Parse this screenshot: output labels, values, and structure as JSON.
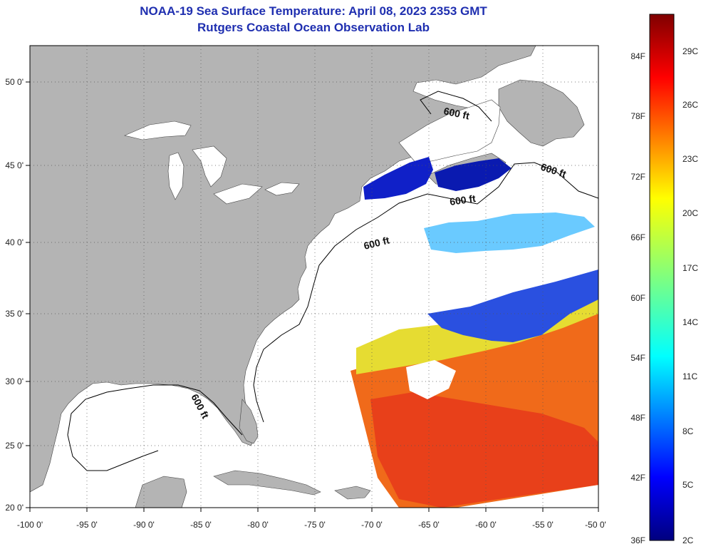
{
  "header": {
    "title": "NOAA-19 Sea Surface Temperature:  April 08, 2023 2353 GMT",
    "subtitle": "Rutgers Coastal Ocean Observation Lab"
  },
  "axes": {
    "lon_labels": [
      "-100 0'",
      "-95 0'",
      "-90 0'",
      "-85 0'",
      "-80 0'",
      "-75 0'",
      "-70 0'",
      "-65 0'",
      "-60 0'",
      "-55 0'",
      "-50 0'"
    ],
    "lat_labels": [
      "20 0'",
      "25 0'",
      "30 0'",
      "35 0'",
      "40 0'",
      "45 0'",
      "50 0'"
    ]
  },
  "isobath_label": "600 ft",
  "colorbar": {
    "fahrenheit": [
      "36F",
      "42F",
      "48F",
      "54F",
      "60F",
      "66F",
      "72F",
      "78F",
      "84F"
    ],
    "celsius": [
      "2C",
      "5C",
      "8C",
      "11C",
      "14C",
      "17C",
      "20C",
      "23C",
      "26C",
      "29C"
    ]
  },
  "colors": {
    "land": "#b4b4b4",
    "ocean": "#ffffff",
    "title": "#1f2fb0"
  }
}
